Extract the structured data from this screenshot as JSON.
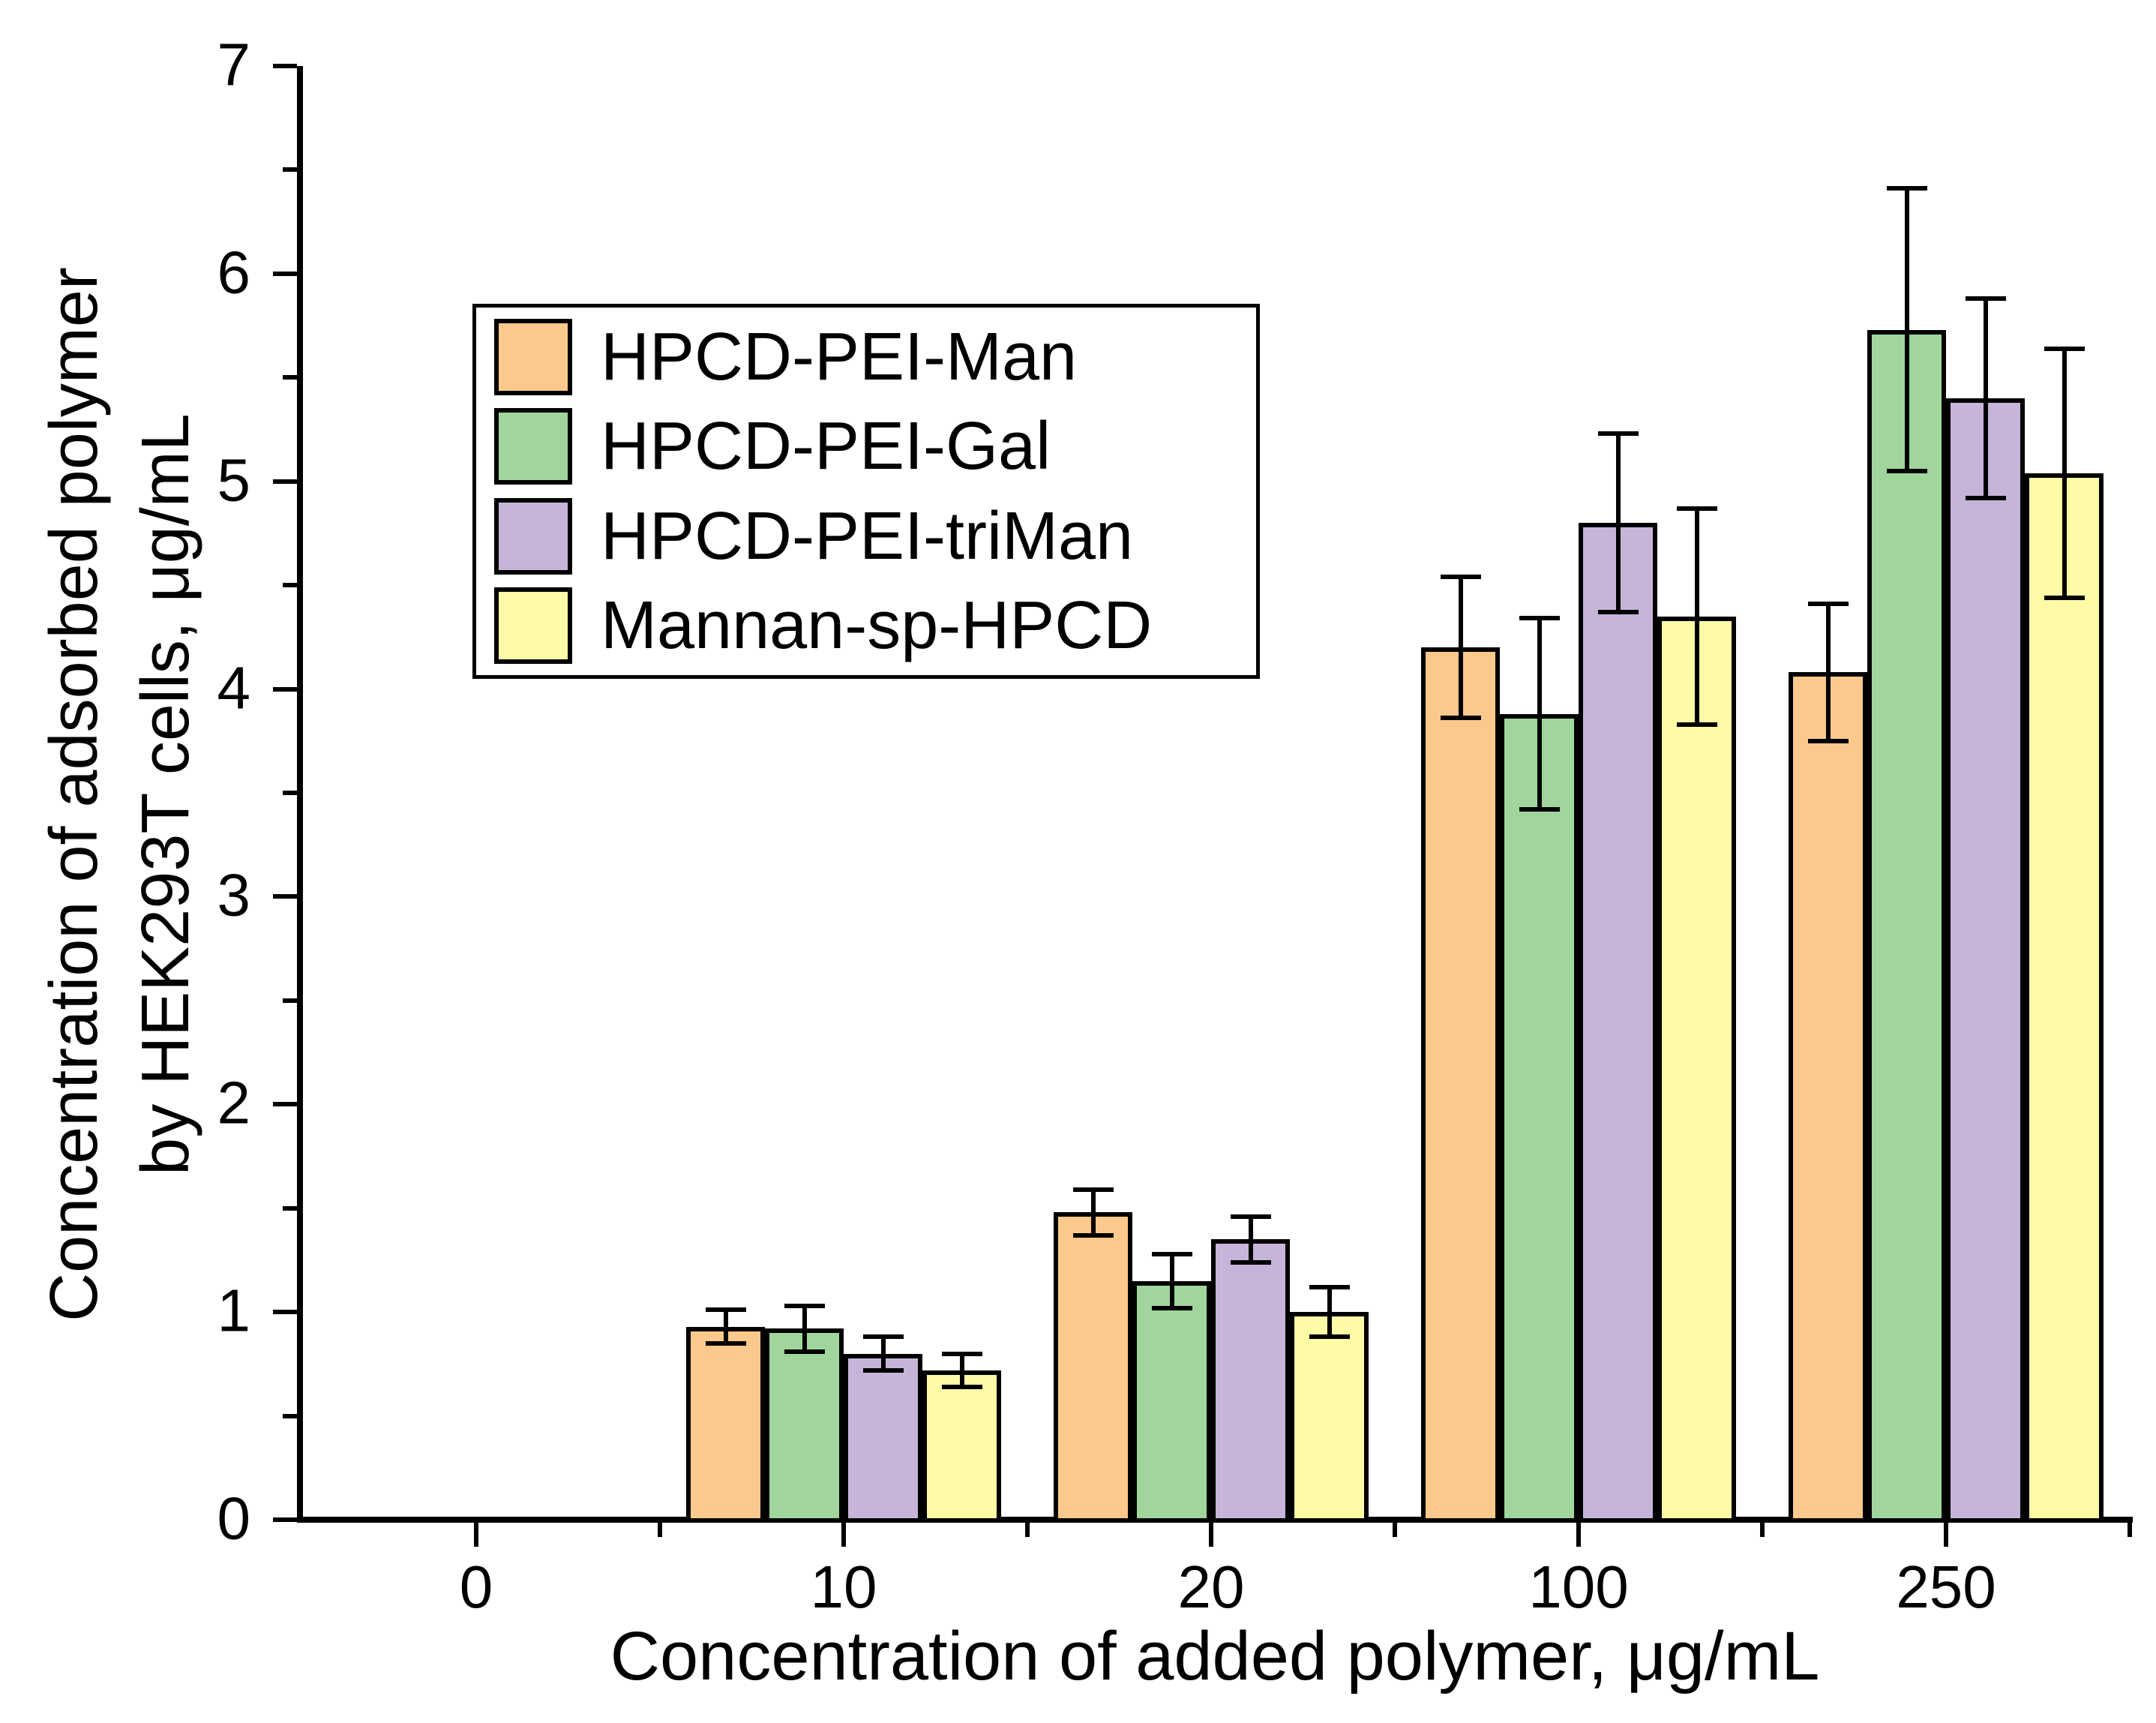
{
  "chart_data": {
    "type": "bar",
    "title": "",
    "xlabel": "Concentration of added polymer, μg/mL",
    "ylabel_line1": "Concentration of adsorbed polymer",
    "ylabel_line2": "by HEK293T cells, μg/mL",
    "categories": [
      "0",
      "10",
      "20",
      "100",
      "250"
    ],
    "series": [
      {
        "name": "HPCD-PEI-Man",
        "color": "#FCC98C",
        "values": [
          0,
          0.93,
          1.48,
          4.2,
          4.08
        ],
        "errors": [
          0,
          0.08,
          0.11,
          0.34,
          0.33
        ]
      },
      {
        "name": "HPCD-PEI-Gal",
        "color": "#A0D69C",
        "values": [
          0,
          0.92,
          1.15,
          3.88,
          5.73
        ],
        "errors": [
          0,
          0.11,
          0.13,
          0.46,
          0.68
        ]
      },
      {
        "name": "HPCD-PEI-triMan",
        "color": "#C6B5D9",
        "values": [
          0,
          0.8,
          1.35,
          4.8,
          5.4
        ],
        "errors": [
          0,
          0.08,
          0.11,
          0.43,
          0.48
        ]
      },
      {
        "name": "Mannan-sp-HPCD",
        "color": "#FDFBA5",
        "values": [
          0,
          0.72,
          1.0,
          4.35,
          5.04
        ],
        "errors": [
          0,
          0.08,
          0.12,
          0.52,
          0.6
        ]
      }
    ],
    "ylim": [
      0,
      7
    ],
    "y_major_ticks": [
      "0",
      "1",
      "2",
      "3",
      "4",
      "5",
      "6",
      "7"
    ],
    "y_minor_step": 0.5,
    "grid": false,
    "legend_position": "top-left-inside",
    "axis_color": "#000000",
    "background_color": "#ffffff",
    "error_bar_color": "#000000"
  }
}
